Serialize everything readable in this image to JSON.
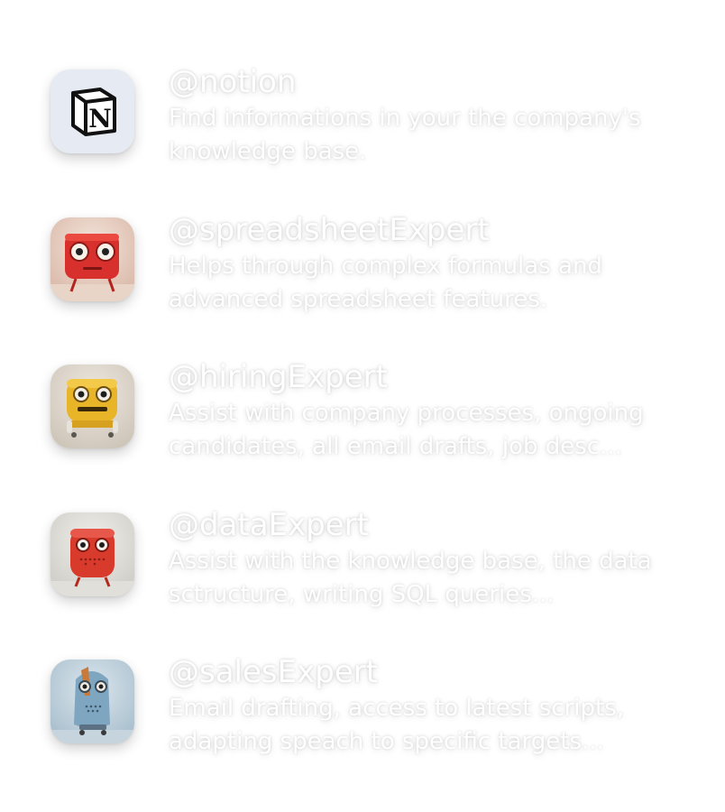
{
  "agents": [
    {
      "handle": "@notion",
      "description": "Find informations in your the company's knowledge base.",
      "icon": "notion-logo-icon",
      "bg_color": "#e6ebf3"
    },
    {
      "handle": "@spreadsheetExpert",
      "description": "Helps through complex formulas and advanced spreadsheet features.",
      "icon": "red-robot-icon",
      "bg_color": "#e9d6cc"
    },
    {
      "handle": "@hiringExpert",
      "description": "Assist with company processes, ongoing candidates, all email drafts, job desc...",
      "icon": "yellow-robot-icon",
      "bg_color": "#e3ddd3"
    },
    {
      "handle": "@dataExpert",
      "description": "Assist with the knowledge base, the data sctructure, writing SQL queries...",
      "icon": "red-box-robot-icon",
      "bg_color": "#e2e1dc"
    },
    {
      "handle": "@salesExpert",
      "description": "Email drafting, access to latest scripts, adapting speach to specific targets...",
      "icon": "blue-robot-icon",
      "bg_color": "#c9d8e2"
    }
  ]
}
